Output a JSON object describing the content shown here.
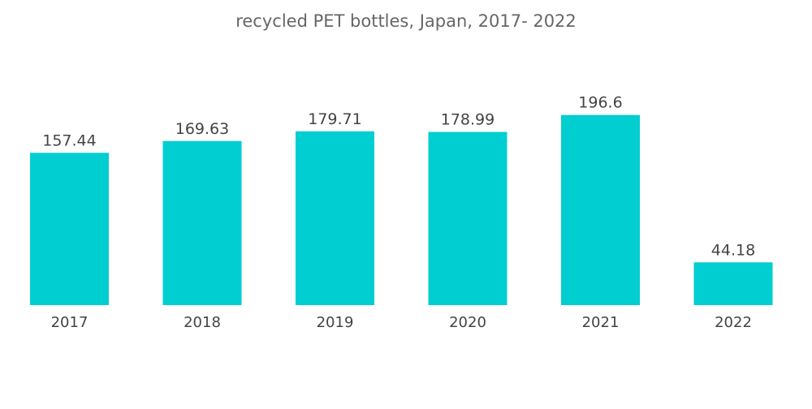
{
  "title": "recycled PET bottles, Japan, 2017- 2022",
  "colors": {
    "bar": "#00CED1",
    "text": "#444444",
    "title": "#666666"
  },
  "chart_data": {
    "type": "bar",
    "title": "recycled PET bottles, Japan, 2017- 2022",
    "xlabel": "",
    "ylabel": "",
    "categories": [
      "2017",
      "2018",
      "2019",
      "2020",
      "2021",
      "2022"
    ],
    "values": [
      157.44,
      169.63,
      179.71,
      178.99,
      196.6,
      44.18
    ],
    "value_labels": [
      "157.44",
      "169.63",
      "179.71",
      "178.99",
      "196.6",
      "44.18"
    ],
    "ylim": [
      0,
      200
    ],
    "grid": false,
    "legend": "none",
    "y_axis_visible": false
  }
}
